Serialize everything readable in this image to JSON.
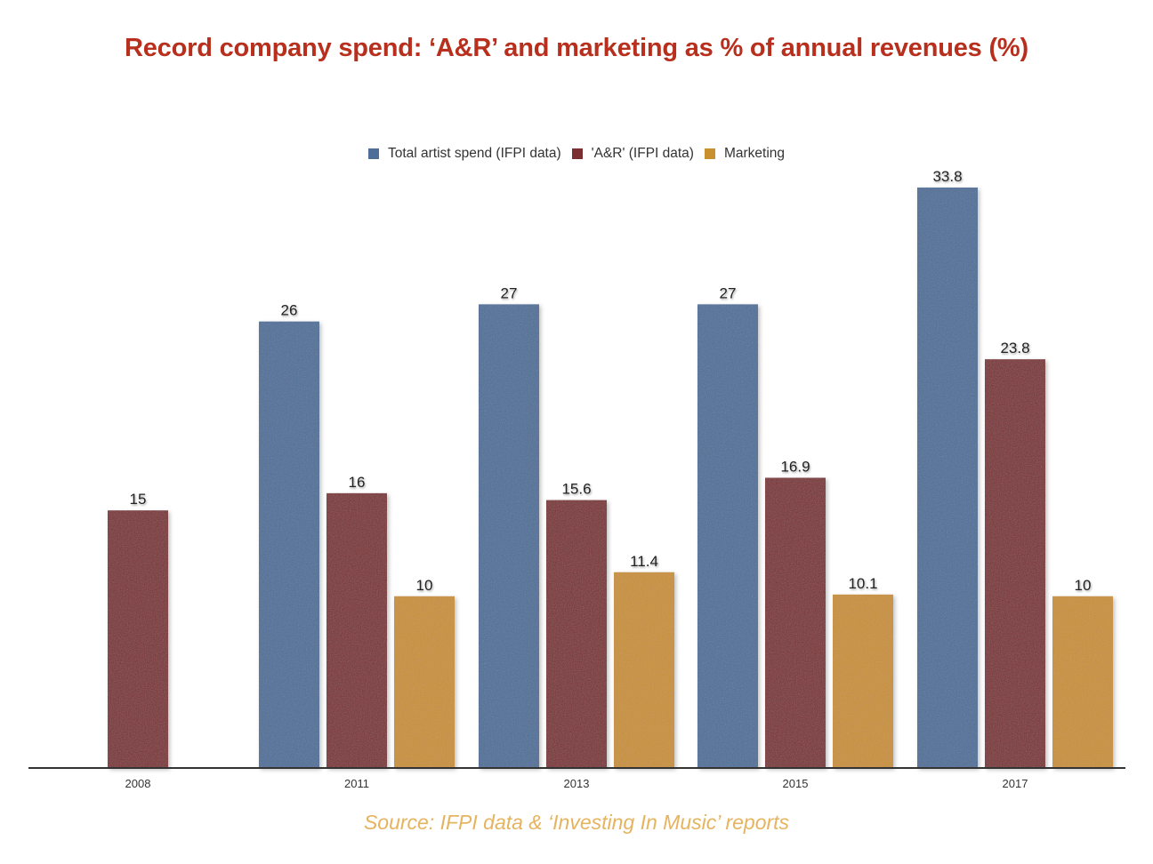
{
  "chart_data": {
    "type": "bar",
    "title": "Record company spend: ‘A&R’ and marketing as % of annual revenues (%)",
    "xlabel": "",
    "ylabel": "",
    "ylim": [
      0,
      35
    ],
    "grid": false,
    "legend_position": "top-center",
    "categories": [
      "2008",
      "2011",
      "2013",
      "2015",
      "2017"
    ],
    "series": [
      {
        "name": "Total artist spend (IFPI data)",
        "color": "#4e6e98",
        "values": [
          null,
          26,
          27,
          27,
          33.8
        ]
      },
      {
        "name": "'A&R' (IFPI data)",
        "color": "#7a2f33",
        "values": [
          15,
          16,
          15.6,
          16.9,
          23.8
        ]
      },
      {
        "name": "Marketing",
        "color": "#c99030",
        "values": [
          null,
          10,
          11.4,
          10.1,
          10
        ]
      }
    ],
    "labels": [
      [
        null,
        "26",
        "27",
        "27",
        "33.8"
      ],
      [
        "15",
        "16",
        "15.6",
        "16.9",
        "23.8"
      ],
      [
        null,
        "10",
        "11.4",
        "10.1",
        "10"
      ]
    ],
    "source": "Source: IFPI data & ‘Investing In Music’ reports"
  },
  "colors": {
    "title": "#b8301d",
    "source": "#e6b35e",
    "axis": "#333333"
  }
}
